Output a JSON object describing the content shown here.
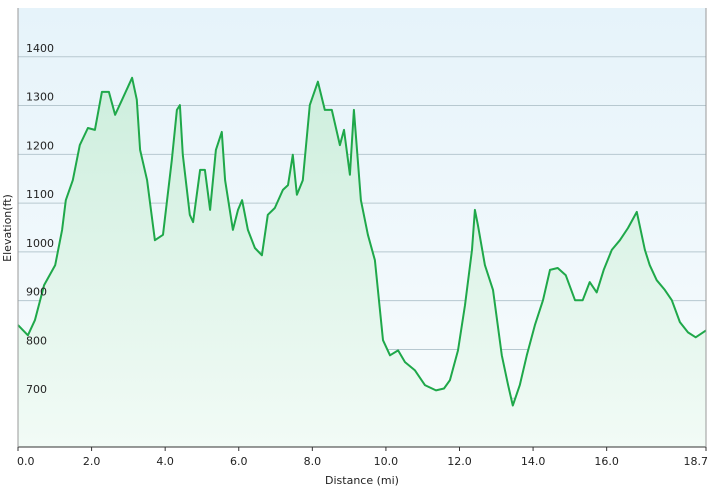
{
  "chart_data": {
    "type": "area",
    "xlabel": "Distance  (mi)",
    "ylabel": "Elevation(ft)",
    "x": [
      0.0,
      0.27,
      0.46,
      0.71,
      1.01,
      1.2,
      1.3,
      1.49,
      1.68,
      1.9,
      2.09,
      2.28,
      2.47,
      2.64,
      2.83,
      3.1,
      3.23,
      3.32,
      3.51,
      3.72,
      3.94,
      4.18,
      4.32,
      4.4,
      4.48,
      4.67,
      4.76,
      4.95,
      5.08,
      5.22,
      5.38,
      5.54,
      5.63,
      5.84,
      5.98,
      6.09,
      6.25,
      6.44,
      6.63,
      6.79,
      6.98,
      7.2,
      7.34,
      7.47,
      7.58,
      7.74,
      7.93,
      8.15,
      8.34,
      8.53,
      8.75,
      8.86,
      9.02,
      9.13,
      9.32,
      9.51,
      9.7,
      9.92,
      10.11,
      10.33,
      10.52,
      10.79,
      11.06,
      11.36,
      11.58,
      11.74,
      11.96,
      12.15,
      12.34,
      12.42,
      12.5,
      12.69,
      12.91,
      13.15,
      13.32,
      13.45,
      13.64,
      13.83,
      14.05,
      14.27,
      14.46,
      14.67,
      14.89,
      15.14,
      15.35,
      15.54,
      15.73,
      15.92,
      16.14,
      16.36,
      16.58,
      16.82,
      17.04,
      17.17,
      17.36,
      17.58,
      17.77,
      17.99,
      18.21,
      18.42,
      18.7
    ],
    "values": [
      850,
      829,
      860,
      932,
      973,
      1045,
      1106,
      1147,
      1219,
      1254,
      1250,
      1328,
      1328,
      1281,
      1312,
      1357,
      1312,
      1209,
      1147,
      1024,
      1035,
      1188,
      1291,
      1301,
      1199,
      1076,
      1061,
      1168,
      1168,
      1086,
      1209,
      1246,
      1147,
      1045,
      1086,
      1106,
      1045,
      1008,
      993,
      1076,
      1090,
      1127,
      1137,
      1199,
      1117,
      1147,
      1301,
      1349,
      1291,
      1291,
      1219,
      1250,
      1158,
      1291,
      1106,
      1035,
      983,
      819,
      788,
      798,
      774,
      757,
      727,
      716,
      720,
      737,
      798,
      891,
      1004,
      1086,
      1055,
      973,
      922,
      788,
      727,
      685,
      727,
      788,
      850,
      901,
      963,
      967,
      952,
      901,
      901,
      938,
      917,
      963,
      1004,
      1024,
      1049,
      1082,
      1004,
      973,
      942,
      922,
      901,
      856,
      835,
      825,
      839
    ],
    "color": "#1fa84a",
    "xlim": [
      0,
      18.7
    ],
    "xticks": [
      {
        "value": 0,
        "label": "0.0"
      },
      {
        "value": 2,
        "label": "2.0"
      },
      {
        "value": 4,
        "label": "4.0"
      },
      {
        "value": 6,
        "label": "6.0"
      },
      {
        "value": 8,
        "label": "8.0"
      },
      {
        "value": 10,
        "label": "10.0"
      },
      {
        "value": 12,
        "label": "12.0"
      },
      {
        "value": 14,
        "label": "14.0"
      },
      {
        "value": 16,
        "label": "16.0"
      },
      18.7
    ],
    "ylim": [
      600,
      1500
    ],
    "yticks": [
      700,
      800,
      900,
      1000,
      1100,
      1200,
      1300,
      1400
    ],
    "grid": true
  }
}
